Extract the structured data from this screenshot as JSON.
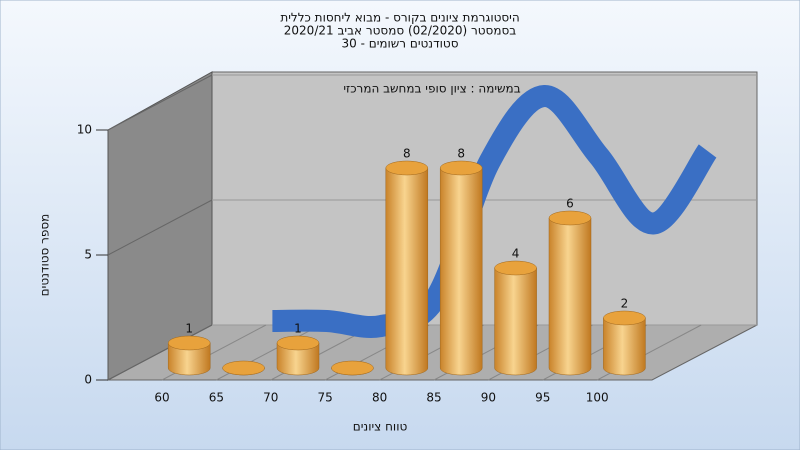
{
  "chart_data": {
    "type": "bar",
    "title": "היסטוגרמת ציונים בקורס - מבוא ליחסות כללית",
    "subtitle": "בסמסטר  (02/2020)  סמסטר אביב 2020/21",
    "subtitle2": "סטודנטים רשומים - 30",
    "annotation": "במשימה : ציון סופי במחשב המרכזי",
    "y_label": "מספר סטודנטים",
    "x_label": "טווח ציונים",
    "categories": [
      "60",
      "65",
      "70",
      "75",
      "80",
      "85",
      "90",
      "95",
      "100"
    ],
    "values": [
      1,
      0,
      1,
      0,
      8,
      8,
      4,
      6,
      2
    ],
    "color": "#e8a94a",
    "curve": {
      "color": "#3a6fc4",
      "values": [
        0.6,
        0.6,
        0.4,
        1.5,
        7.0,
        9.6,
        7.2,
        4.5,
        7.4
      ]
    },
    "ylim": [
      0,
      10
    ],
    "yticks": [
      0,
      5,
      10
    ],
    "grid": true
  }
}
